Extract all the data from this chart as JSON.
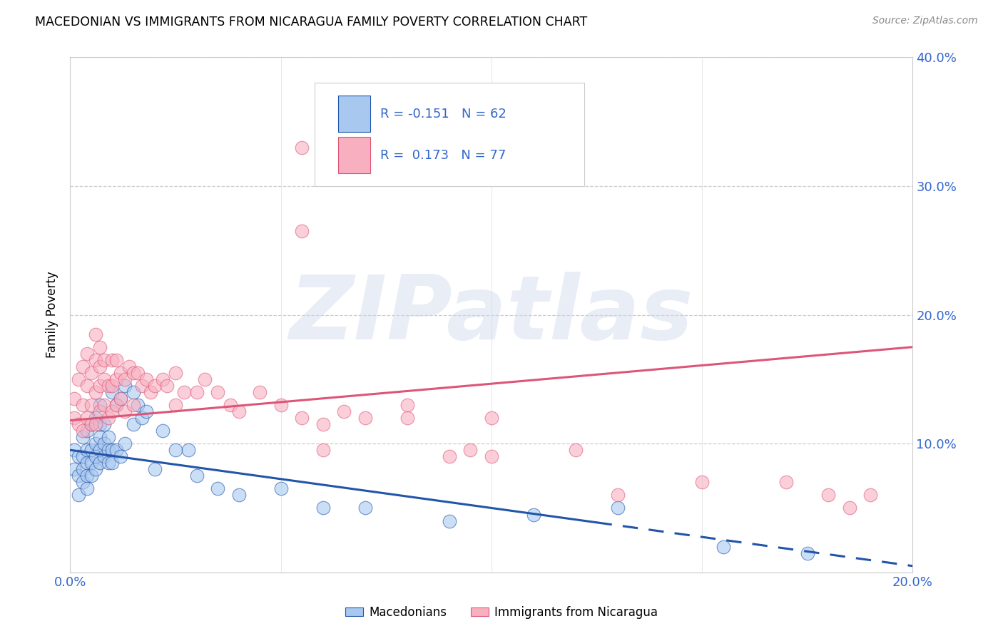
{
  "title": "MACEDONIAN VS IMMIGRANTS FROM NICARAGUA FAMILY POVERTY CORRELATION CHART",
  "source": "Source: ZipAtlas.com",
  "ylabel": "Family Poverty",
  "legend_label1": "Macedonians",
  "legend_label2": "Immigrants from Nicaragua",
  "R1": -0.151,
  "N1": 62,
  "R2": 0.173,
  "N2": 77,
  "color1": "#a8c8f0",
  "color2": "#f8b0c0",
  "trend1_color": "#2255aa",
  "trend2_color": "#dd5577",
  "xlim": [
    0,
    0.2
  ],
  "ylim": [
    0,
    0.4
  ],
  "xticks": [
    0.0,
    0.05,
    0.1,
    0.15,
    0.2
  ],
  "yticks": [
    0.0,
    0.1,
    0.2,
    0.3,
    0.4
  ],
  "watermark": "ZIPatlas",
  "trend1_x0": 0.0,
  "trend1_y0": 0.095,
  "trend1_x1": 0.2,
  "trend1_y1": 0.005,
  "trend2_x0": 0.0,
  "trend2_y0": 0.118,
  "trend2_x1": 0.2,
  "trend2_y1": 0.175,
  "trend1_solid_end": 0.125,
  "blue_scatter_x": [
    0.001,
    0.001,
    0.002,
    0.002,
    0.002,
    0.003,
    0.003,
    0.003,
    0.003,
    0.004,
    0.004,
    0.004,
    0.004,
    0.004,
    0.005,
    0.005,
    0.005,
    0.005,
    0.006,
    0.006,
    0.006,
    0.006,
    0.007,
    0.007,
    0.007,
    0.007,
    0.007,
    0.008,
    0.008,
    0.008,
    0.009,
    0.009,
    0.009,
    0.01,
    0.01,
    0.01,
    0.011,
    0.011,
    0.012,
    0.012,
    0.013,
    0.013,
    0.015,
    0.015,
    0.016,
    0.017,
    0.018,
    0.02,
    0.022,
    0.025,
    0.028,
    0.03,
    0.035,
    0.04,
    0.05,
    0.06,
    0.07,
    0.09,
    0.11,
    0.13,
    0.155,
    0.175
  ],
  "blue_scatter_y": [
    0.08,
    0.095,
    0.06,
    0.075,
    0.09,
    0.07,
    0.08,
    0.09,
    0.105,
    0.065,
    0.075,
    0.085,
    0.095,
    0.11,
    0.075,
    0.085,
    0.095,
    0.115,
    0.08,
    0.09,
    0.1,
    0.12,
    0.085,
    0.095,
    0.105,
    0.115,
    0.13,
    0.09,
    0.1,
    0.115,
    0.085,
    0.095,
    0.105,
    0.085,
    0.095,
    0.14,
    0.095,
    0.13,
    0.09,
    0.135,
    0.1,
    0.145,
    0.115,
    0.14,
    0.13,
    0.12,
    0.125,
    0.08,
    0.11,
    0.095,
    0.095,
    0.075,
    0.065,
    0.06,
    0.065,
    0.05,
    0.05,
    0.04,
    0.045,
    0.05,
    0.02,
    0.015
  ],
  "pink_scatter_x": [
    0.001,
    0.001,
    0.002,
    0.002,
    0.003,
    0.003,
    0.003,
    0.004,
    0.004,
    0.004,
    0.005,
    0.005,
    0.005,
    0.006,
    0.006,
    0.006,
    0.006,
    0.007,
    0.007,
    0.007,
    0.007,
    0.008,
    0.008,
    0.008,
    0.009,
    0.009,
    0.01,
    0.01,
    0.01,
    0.011,
    0.011,
    0.011,
    0.012,
    0.012,
    0.013,
    0.013,
    0.014,
    0.015,
    0.015,
    0.016,
    0.017,
    0.018,
    0.019,
    0.02,
    0.022,
    0.023,
    0.025,
    0.025,
    0.027,
    0.03,
    0.032,
    0.035,
    0.038,
    0.04,
    0.045,
    0.05,
    0.055,
    0.06,
    0.07,
    0.08,
    0.09,
    0.1,
    0.12,
    0.13,
    0.15,
    0.17,
    0.18,
    0.185,
    0.19,
    0.065,
    0.06,
    0.08,
    0.095,
    0.055,
    0.06,
    0.055,
    0.1
  ],
  "pink_scatter_y": [
    0.12,
    0.135,
    0.115,
    0.15,
    0.11,
    0.13,
    0.16,
    0.12,
    0.145,
    0.17,
    0.115,
    0.13,
    0.155,
    0.115,
    0.14,
    0.165,
    0.185,
    0.125,
    0.145,
    0.16,
    0.175,
    0.13,
    0.15,
    0.165,
    0.12,
    0.145,
    0.125,
    0.145,
    0.165,
    0.13,
    0.15,
    0.165,
    0.135,
    0.155,
    0.125,
    0.15,
    0.16,
    0.13,
    0.155,
    0.155,
    0.145,
    0.15,
    0.14,
    0.145,
    0.15,
    0.145,
    0.13,
    0.155,
    0.14,
    0.14,
    0.15,
    0.14,
    0.13,
    0.125,
    0.14,
    0.13,
    0.12,
    0.115,
    0.12,
    0.12,
    0.09,
    0.09,
    0.095,
    0.06,
    0.07,
    0.07,
    0.06,
    0.05,
    0.06,
    0.125,
    0.095,
    0.13,
    0.095,
    0.265,
    0.32,
    0.33,
    0.12
  ]
}
